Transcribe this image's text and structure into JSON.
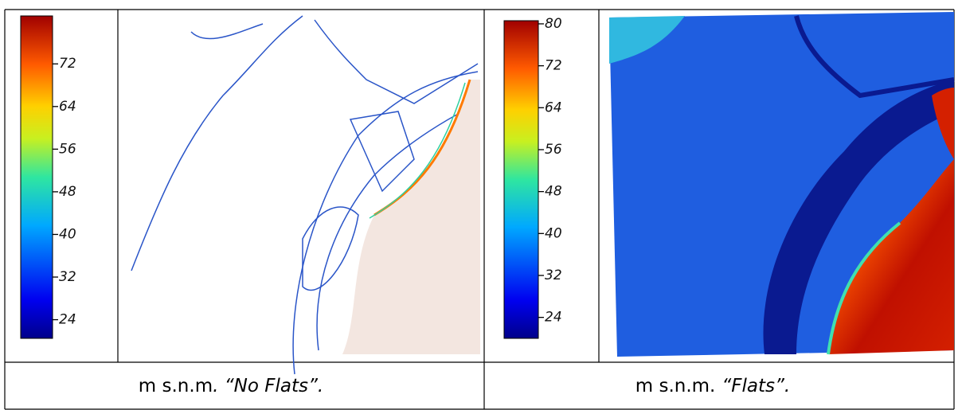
{
  "panels": [
    {
      "colorbar": {
        "lim": [
          20.5,
          81
        ],
        "ticks": [
          72,
          64,
          56,
          48,
          40,
          32,
          24
        ]
      },
      "caption": {
        "unit": "m s.n.m",
        "label": ". “No Flats”."
      }
    },
    {
      "colorbar": {
        "lim": [
          20,
          80.6
        ],
        "ticks": [
          80,
          72,
          64,
          56,
          48,
          40,
          32,
          24
        ]
      },
      "caption": {
        "unit": "m s.n.m.",
        "label": "“Flats”."
      }
    }
  ]
}
